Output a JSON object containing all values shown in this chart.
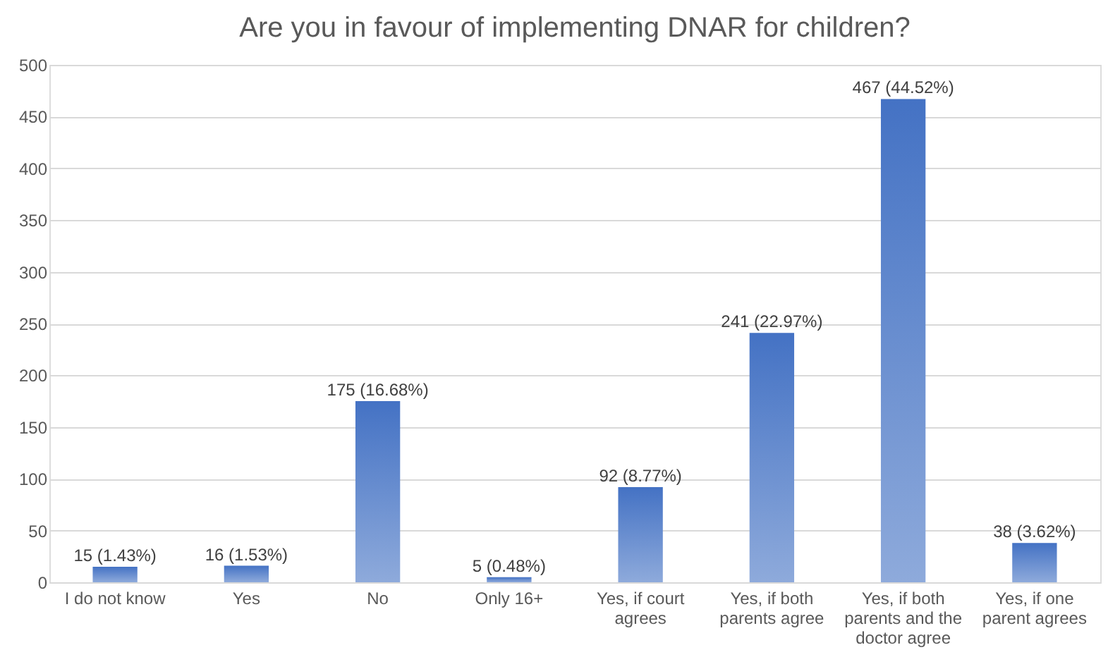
{
  "chart_data": {
    "type": "bar",
    "title": "Are you in favour of implementing DNAR for children?",
    "categories": [
      "I do not know",
      "Yes",
      "No",
      "Only 16+",
      "Yes, if court agrees",
      "Yes, if both parents agree",
      "Yes, if both parents and the doctor agree",
      "Yes, if one parent agrees"
    ],
    "values": [
      15,
      16,
      175,
      5,
      92,
      241,
      467,
      38
    ],
    "value_labels": [
      "15 (1.43%)",
      "16 (1.53%)",
      "175 (16.68%)",
      "5 (0.48%)",
      "92 (8.77%)",
      "241 (22.97%)",
      "467 (44.52%)",
      "38 (3.62%)"
    ],
    "color": "#4472c4",
    "ylim": [
      0,
      500
    ],
    "yticks": [
      0,
      50,
      100,
      150,
      200,
      250,
      300,
      350,
      400,
      450,
      500
    ],
    "grid": "y"
  }
}
